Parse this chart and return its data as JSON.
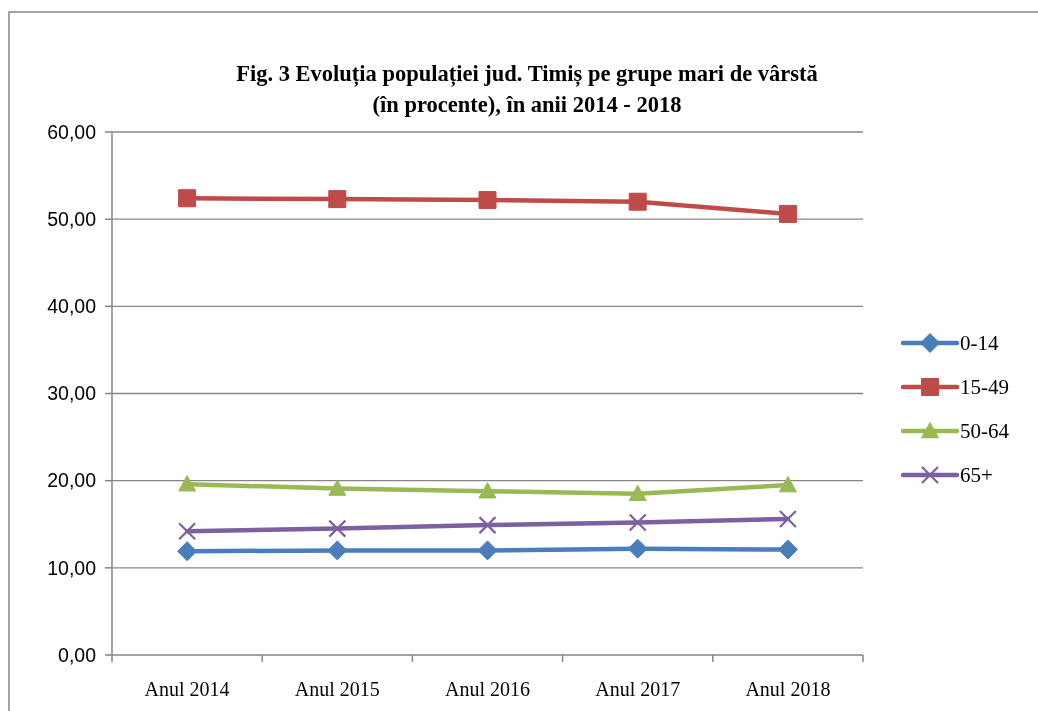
{
  "chart_data": {
    "type": "line",
    "title": "Fig. 3 Evoluția populației jud. Timiș pe grupe mari de vârstă\n(în procente), în anii 2014 - 2018",
    "categories": [
      "Anul 2014",
      "Anul 2015",
      "Anul 2016",
      "Anul 2017",
      "Anul 2018"
    ],
    "series": [
      {
        "name": "0-14",
        "color": "#4a7ebb",
        "marker": "diamond",
        "values": [
          11.9,
          12.0,
          12.0,
          12.2,
          12.1
        ]
      },
      {
        "name": "15-49",
        "color": "#be4b48",
        "marker": "square",
        "values": [
          52.4,
          52.3,
          52.2,
          52.0,
          50.6
        ]
      },
      {
        "name": "50-64",
        "color": "#98b954",
        "marker": "triangle",
        "values": [
          19.6,
          19.1,
          18.8,
          18.5,
          19.5
        ]
      },
      {
        "name": "65+",
        "color": "#7d60a0",
        "marker": "cross",
        "values": [
          14.2,
          14.5,
          14.9,
          15.2,
          15.6
        ]
      }
    ],
    "ylim": [
      0,
      60
    ],
    "yticks": [
      {
        "value": 0,
        "label": "0,00"
      },
      {
        "value": 10,
        "label": "10,00"
      },
      {
        "value": 20,
        "label": "20,00"
      },
      {
        "value": 30,
        "label": "30,00"
      },
      {
        "value": 40,
        "label": "40,00"
      },
      {
        "value": 50,
        "label": "50,00"
      },
      {
        "value": 60,
        "label": "60,00"
      }
    ],
    "grid": "y",
    "legend": "right",
    "line_style": "solid"
  }
}
